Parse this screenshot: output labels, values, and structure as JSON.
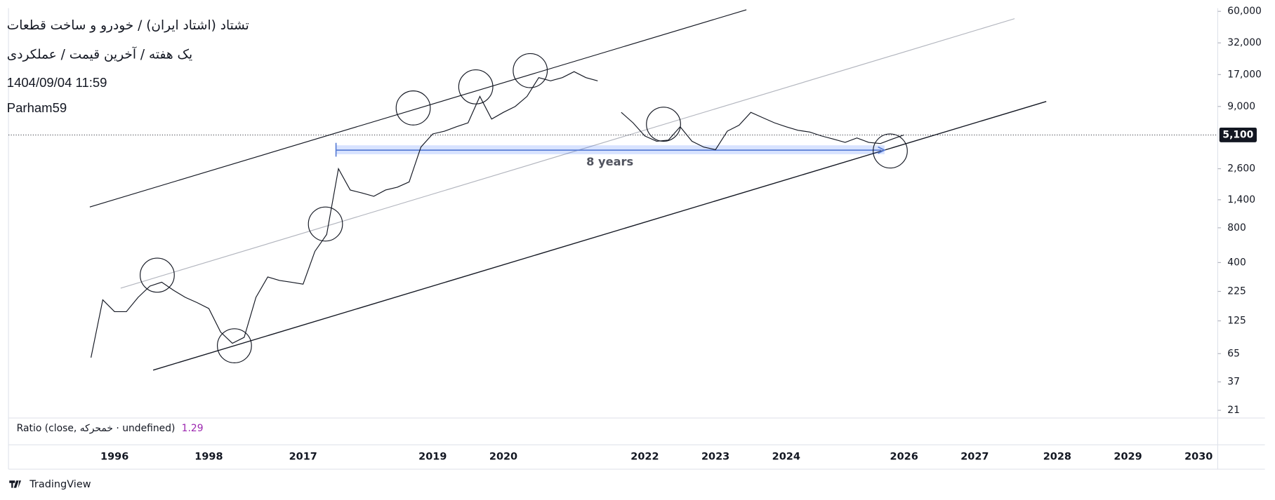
{
  "chart_data": {
    "type": "line",
    "title": "تشتاد (اشتاد ایران) / خودرو و ساخت قطعات",
    "subtitle": "یک هفته / آخرین قیمت / عملکردی",
    "timestamp": "1404/09/04  11:59",
    "author": "Parham59",
    "annotations": [
      "8 years"
    ],
    "indicator": {
      "label": "Ratio (close, خمحرکه · undefined)",
      "value": 1.29
    },
    "brand": "TradingView",
    "log_scale": true,
    "grid": false,
    "last_price": {
      "value": 5100,
      "label": "5,100"
    },
    "ylim": [
      18,
      64000
    ],
    "yticks": [
      21,
      37,
      65,
      125,
      225,
      400,
      800,
      {
        "value": 1400,
        "label": "1,400"
      },
      {
        "value": 2600,
        "label": "2,600"
      },
      {
        "value": 9000,
        "label": "9,000"
      },
      {
        "value": 17000,
        "label": "17,000"
      },
      {
        "value": 32000,
        "label": "32,000"
      },
      {
        "value": 60000,
        "label": "60,000"
      }
    ],
    "categories": [
      null,
      null,
      null,
      null,
      null,
      null,
      null,
      null,
      null,
      "1996",
      null,
      null,
      null,
      null,
      null,
      null,
      null,
      "1998",
      null,
      null,
      null,
      null,
      null,
      null,
      null,
      "2017",
      null,
      null,
      null,
      null,
      null,
      null,
      null,
      null,
      null,
      null,
      "2019",
      null,
      null,
      null,
      null,
      null,
      "2020",
      null,
      null,
      null,
      null,
      null,
      null,
      null,
      null,
      null,
      null,
      null,
      "2022",
      null,
      null,
      null,
      null,
      null,
      "2023",
      null,
      null,
      null,
      null,
      null,
      "2024",
      null,
      null,
      null,
      null,
      null,
      null,
      null,
      null,
      null,
      "2026",
      null,
      null,
      null,
      null,
      null,
      "2027",
      null,
      null,
      null,
      null,
      null,
      null,
      "2028",
      null,
      null,
      null,
      null,
      null,
      "2029",
      null,
      null,
      null,
      null,
      null,
      "2030"
    ],
    "series": [
      {
        "name": "تشتاد",
        "color": "#131722",
        "values": [
          null,
          null,
          null,
          null,
          null,
          null,
          null,
          60,
          190,
          150,
          150,
          200,
          250,
          270,
          230,
          200,
          180,
          160,
          100,
          80,
          90,
          200,
          300,
          280,
          270,
          260,
          500,
          700,
          2600,
          1700,
          1600,
          1500,
          1700,
          1800,
          2000,
          4000,
          5200,
          5500,
          6000,
          6500,
          11000,
          7000,
          8000,
          9000,
          11000,
          16000,
          15000,
          16000,
          18000,
          16000,
          15000,
          null,
          8000,
          6500,
          5000,
          4500,
          4600,
          6000,
          4500,
          4000,
          3800,
          5500,
          6200,
          8000,
          7200,
          6500,
          6000,
          5600,
          5400,
          5000,
          4700,
          4400,
          4800,
          4400,
          4300,
          4700,
          5100,
          null,
          null,
          null,
          null,
          null,
          null,
          null,
          null,
          null,
          null,
          null,
          null,
          null,
          null,
          null,
          null,
          null,
          null,
          null,
          null,
          null,
          null,
          null,
          null,
          null
        ]
      }
    ]
  }
}
